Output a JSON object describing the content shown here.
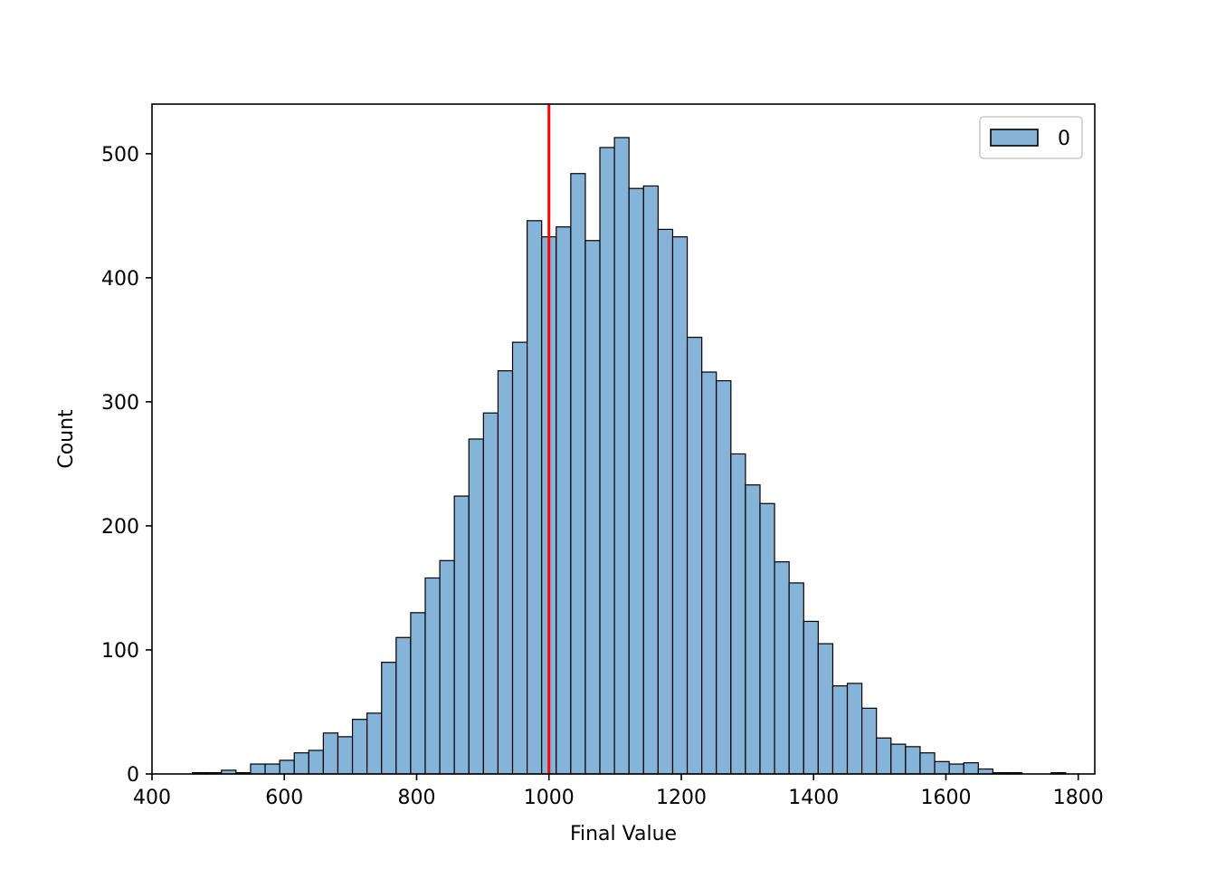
{
  "chart_data": {
    "type": "bar",
    "xlabel": "Final Value",
    "ylabel": "Count",
    "xlim": [
      400,
      1825
    ],
    "ylim": [
      0,
      540
    ],
    "x_ticks": [
      400,
      600,
      800,
      1000,
      1200,
      1400,
      1600,
      1800
    ],
    "y_ticks": [
      0,
      100,
      200,
      300,
      400,
      500
    ],
    "x_tick_labels": [
      "400",
      "600",
      "800",
      "1000",
      "1200",
      "1400",
      "1600",
      "1800"
    ],
    "y_tick_labels": [
      "0",
      "100",
      "200",
      "300",
      "400",
      "500"
    ],
    "bin_start": 461,
    "bin_width": 22,
    "counts": [
      1,
      1,
      3,
      1,
      8,
      8,
      11,
      17,
      19,
      33,
      30,
      44,
      49,
      90,
      110,
      130,
      158,
      172,
      224,
      270,
      291,
      325,
      348,
      446,
      433,
      441,
      484,
      430,
      505,
      513,
      472,
      474,
      439,
      433,
      352,
      324,
      317,
      258,
      233,
      218,
      171,
      154,
      123,
      105,
      71,
      73,
      53,
      29,
      24,
      22,
      17,
      10,
      8,
      9,
      4,
      1,
      1,
      0,
      0,
      1
    ],
    "reference_line": {
      "x": 1000,
      "color": "#ff0000"
    },
    "legend": {
      "placement": "top-right",
      "entries": [
        {
          "label": "0",
          "color": "#86b4d8"
        }
      ]
    },
    "colors": {
      "bar_fill": "#86b4d8",
      "bar_edge": "#000000"
    },
    "grid": false
  }
}
